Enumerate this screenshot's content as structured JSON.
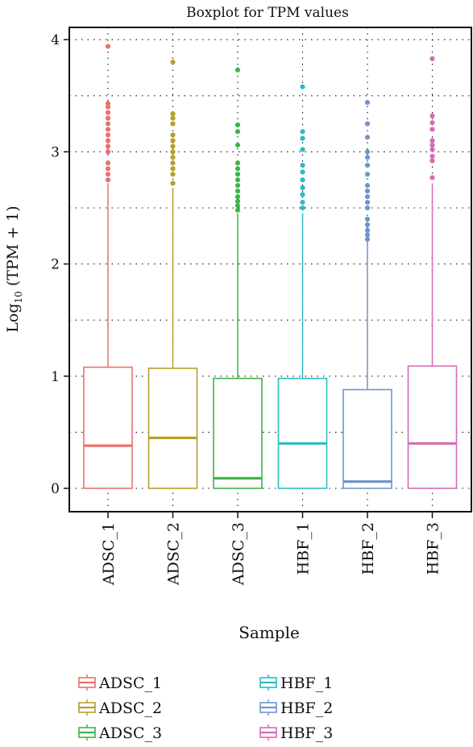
{
  "chart_data": {
    "type": "boxplot",
    "title": "Boxplot for TPM values",
    "xlabel": "Sample",
    "ylabel_prefix": "Log",
    "ylabel_sub": "10",
    "ylabel_suffix": " (TPM + 1)",
    "ylim": [
      -0.1,
      4.1
    ],
    "yticks": [
      "0",
      "1",
      "2",
      "3",
      "4"
    ],
    "grid": true,
    "legend_position": "bottom",
    "categories": [
      "ADSC_1",
      "ADSC_2",
      "ADSC_3",
      "HBF_1",
      "HBF_2",
      "HBF_3"
    ],
    "series": [
      {
        "name": "ADSC_1",
        "color": "#e8736c",
        "whisker_low": 0,
        "q1": 0,
        "median": 0.38,
        "q3": 1.08,
        "whisker_high": 2.72,
        "outliers": [
          2.75,
          2.8,
          2.85,
          2.9,
          3.0,
          3.05,
          3.1,
          3.15,
          3.2,
          3.25,
          3.3,
          3.35,
          3.4,
          3.43,
          3.94
        ]
      },
      {
        "name": "ADSC_2",
        "color": "#b79f2f",
        "whisker_low": 0,
        "q1": 0,
        "median": 0.45,
        "q3": 1.07,
        "whisker_high": 2.68,
        "outliers": [
          2.72,
          2.8,
          2.85,
          2.9,
          2.95,
          3.0,
          3.05,
          3.1,
          3.15,
          3.25,
          3.3,
          3.34,
          3.8
        ]
      },
      {
        "name": "ADSC_3",
        "color": "#3cb54a",
        "whisker_low": 0,
        "q1": 0,
        "median": 0.09,
        "q3": 0.98,
        "whisker_high": 2.45,
        "outliers": [
          2.48,
          2.52,
          2.56,
          2.6,
          2.65,
          2.7,
          2.75,
          2.8,
          2.85,
          2.9,
          3.06,
          3.18,
          3.24,
          3.73
        ]
      },
      {
        "name": "HBF_1",
        "color": "#2bbcc3",
        "whisker_low": 0,
        "q1": 0,
        "median": 0.4,
        "q3": 0.98,
        "whisker_high": 2.45,
        "outliers": [
          2.5,
          2.55,
          2.62,
          2.68,
          2.75,
          2.82,
          2.88,
          3.02,
          3.12,
          3.18,
          3.58
        ]
      },
      {
        "name": "HBF_2",
        "color": "#6f95cd",
        "whisker_low": 0,
        "q1": 0,
        "median": 0.06,
        "q3": 0.88,
        "whisker_high": 2.2,
        "outliers": [
          2.22,
          2.26,
          2.3,
          2.35,
          2.4,
          2.5,
          2.55,
          2.6,
          2.65,
          2.7,
          2.8,
          2.88,
          2.95,
          3.0,
          3.13,
          3.25,
          3.44
        ]
      },
      {
        "name": "HBF_3",
        "color": "#d66cb6",
        "whisker_low": 0,
        "q1": 0,
        "median": 0.4,
        "q3": 1.09,
        "whisker_high": 2.72,
        "outliers": [
          2.77,
          2.92,
          2.96,
          3.02,
          3.06,
          3.1,
          3.2,
          3.26,
          3.32,
          3.83
        ]
      }
    ]
  }
}
